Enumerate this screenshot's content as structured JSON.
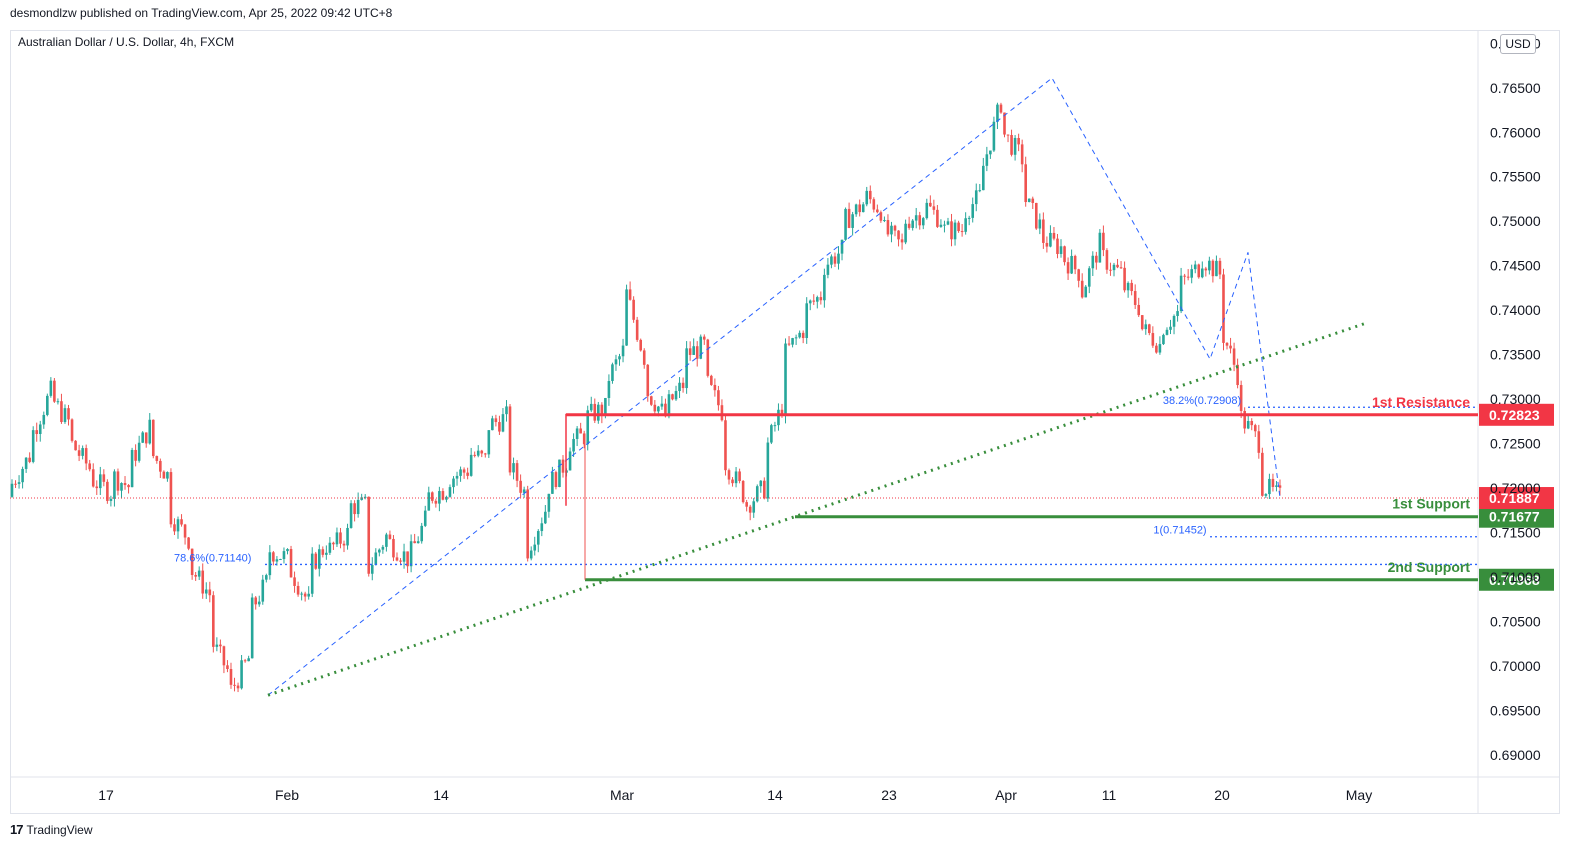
{
  "header": {
    "published": "desmondlzw published on TradingView.com, Apr 25, 2022 09:42 UTC+8"
  },
  "symbol_label": "Australian Dollar / U.S. Dollar, 4h, FXCM",
  "currency_badge": "USD",
  "footer": {
    "logo": "17",
    "brand": "TradingView"
  },
  "colors": {
    "up": "#26a69a",
    "down": "#ef5350",
    "resistance": "#f23645",
    "support": "#388e3c",
    "fib": "#2962ff",
    "trend": "#388e3c",
    "last_price": "#f23645"
  },
  "chart_data": {
    "type": "candlestick",
    "title": "",
    "y_axis": {
      "ticks": [
        "0.69000",
        "0.69500",
        "0.70000",
        "0.70500",
        "0.71000",
        "0.71500",
        "0.72000",
        "0.72500",
        "0.73000",
        "0.73500",
        "0.74000",
        "0.74500",
        "0.75000",
        "0.75500",
        "0.76000",
        "0.76500",
        "0.77000"
      ],
      "range": [
        0.6875,
        0.7715
      ]
    },
    "x_axis": {
      "labels": [
        "17",
        "Feb",
        "14",
        "Mar",
        "14",
        "23",
        "Apr",
        "11",
        "20",
        "May"
      ]
    },
    "price_path": [
      [
        0.719,
        0.7205
      ],
      [
        0.724,
        0.726
      ],
      [
        0.731,
        0.73
      ],
      [
        0.727,
        0.725
      ],
      [
        0.722,
        0.721
      ],
      [
        0.7195,
        0.7215
      ],
      [
        0.72,
        0.723
      ],
      [
        0.727,
        0.724
      ],
      [
        0.721,
        0.717
      ],
      [
        0.714,
        0.711
      ],
      [
        0.708,
        0.703
      ],
      [
        0.699,
        0.697
      ],
      [
        0.701,
        0.706
      ],
      [
        0.71,
        0.713
      ],
      [
        0.712,
        0.711
      ],
      [
        0.707,
        0.711
      ],
      [
        0.714,
        0.713
      ],
      [
        0.715,
        0.718
      ],
      [
        0.718,
        0.711
      ],
      [
        0.715,
        0.714
      ],
      [
        0.712,
        0.712
      ],
      [
        0.717,
        0.719
      ],
      [
        0.72,
        0.721
      ],
      [
        0.722,
        0.724
      ],
      [
        0.723,
        0.727
      ],
      [
        0.728,
        0.723
      ],
      [
        0.719,
        0.713
      ],
      [
        0.718,
        0.72
      ],
      [
        0.723,
        0.725
      ],
      [
        0.726,
        0.728
      ],
      [
        0.729,
        0.732
      ],
      [
        0.736,
        0.742
      ],
      [
        0.734,
        0.731
      ],
      [
        0.728,
        0.729
      ],
      [
        0.732,
        0.735
      ],
      [
        0.736,
        0.732
      ],
      [
        0.728,
        0.723
      ],
      [
        0.719,
        0.718
      ],
      [
        0.72,
        0.724
      ],
      [
        0.73,
        0.735
      ],
      [
        0.738,
        0.74
      ],
      [
        0.742,
        0.745
      ],
      [
        0.747,
        0.75
      ],
      [
        0.752,
        0.753
      ],
      [
        0.751,
        0.749
      ],
      [
        0.747,
        0.75
      ],
      [
        0.751,
        0.752
      ],
      [
        0.75,
        0.749
      ],
      [
        0.749,
        0.751
      ],
      [
        0.753,
        0.756
      ],
      [
        0.764,
        0.76
      ],
      [
        0.757,
        0.753
      ],
      [
        0.749,
        0.748
      ],
      [
        0.747,
        0.746
      ],
      [
        0.744,
        0.742
      ],
      [
        0.748,
        0.746
      ],
      [
        0.744,
        0.743
      ],
      [
        0.74,
        0.738
      ],
      [
        0.736,
        0.738
      ],
      [
        0.74,
        0.743
      ],
      [
        0.745,
        0.746
      ],
      [
        0.744,
        0.738
      ],
      [
        0.732,
        0.728
      ],
      [
        0.725,
        0.7205
      ],
      [
        0.7189,
        0.7189
      ]
    ],
    "extremes": {
      "high": 0.7661,
      "low": 0.6967
    },
    "levels": [
      {
        "label": "1st Resistance",
        "price": "0.72823",
        "value": 0.72823,
        "kind": "resistance"
      },
      {
        "label": "1st Support",
        "price": "0.71677",
        "value": 0.71677,
        "kind": "support"
      },
      {
        "label": "2nd Support",
        "price": "0.70968",
        "value": 0.70968,
        "kind": "support"
      }
    ],
    "last_price": {
      "value": 0.71887,
      "text": "0.71887"
    },
    "fib_labels": [
      {
        "text": "78.6%(0.71140)",
        "value": 0.7114
      },
      {
        "text": "38.2%(0.72908)",
        "value": 0.72908
      },
      {
        "text": "1(0.71452)",
        "value": 0.71452
      }
    ],
    "trendline": [
      0.6967,
      0.7385
    ]
  }
}
